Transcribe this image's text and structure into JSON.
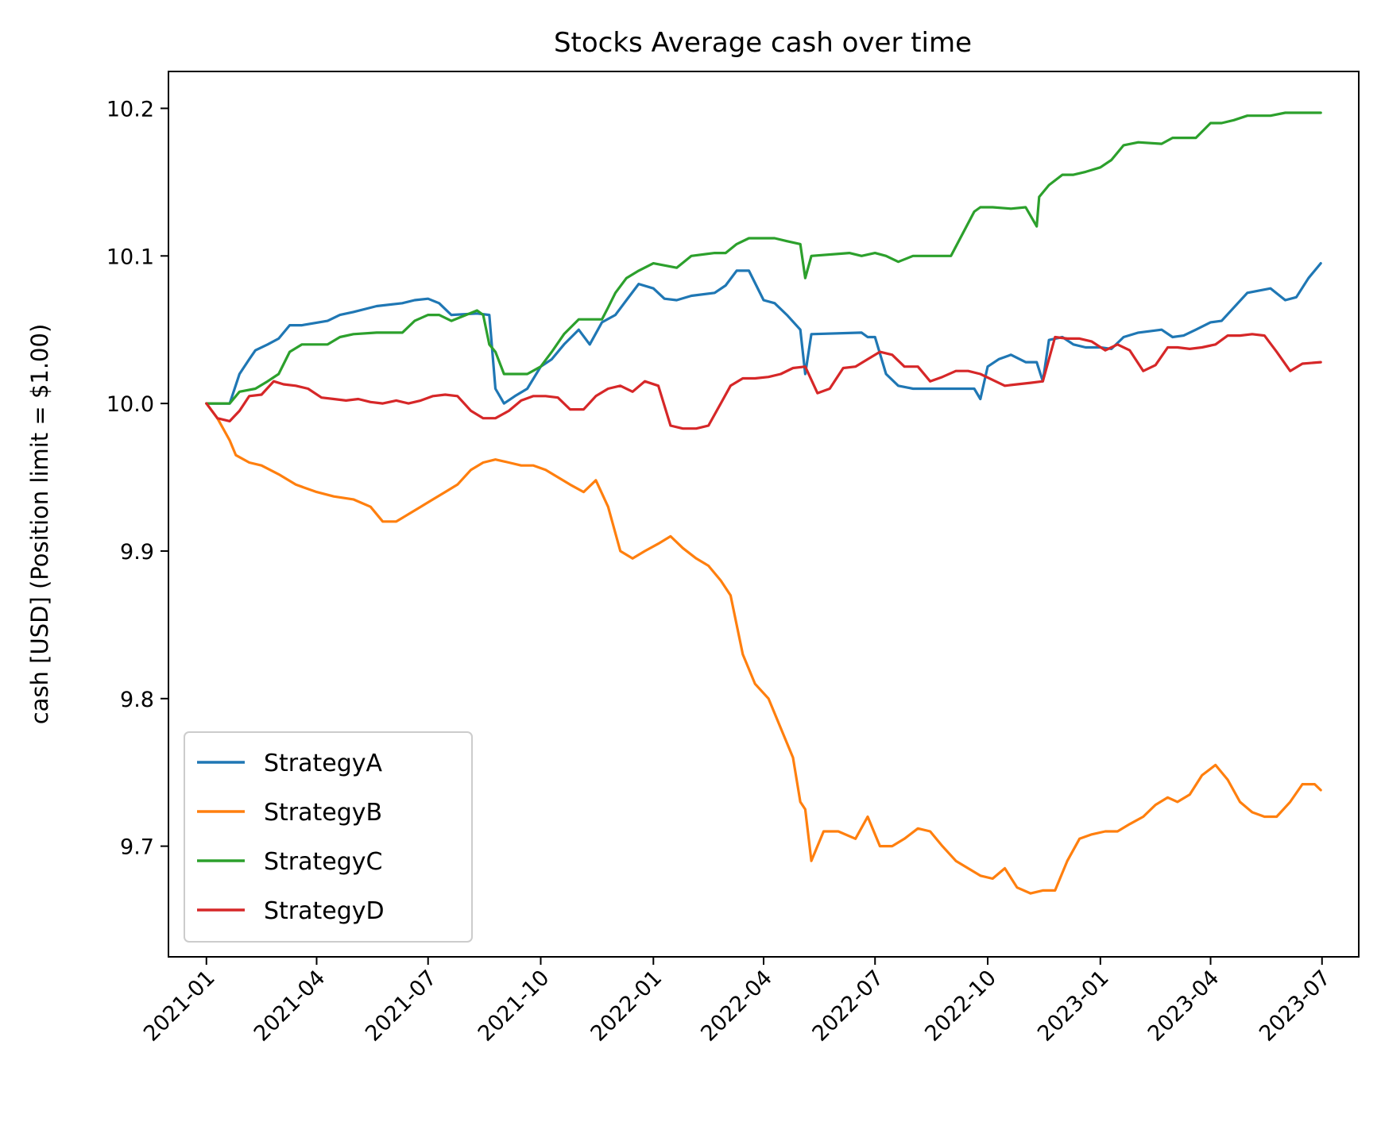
{
  "chart_data": {
    "type": "line",
    "title": "Stocks Average cash over time",
    "xlabel": "",
    "ylabel": "cash [USD] (Position limit = $1.00)",
    "xlim": [
      "2020-12-01",
      "2023-07-31"
    ],
    "ylim": [
      9.625,
      10.225
    ],
    "x_ticks": [
      "2021-01",
      "2021-04",
      "2021-07",
      "2021-10",
      "2022-01",
      "2022-04",
      "2022-07",
      "2022-10",
      "2023-01",
      "2023-04",
      "2023-07"
    ],
    "y_ticks": [
      "9.7",
      "9.8",
      "9.9",
      "10.0",
      "10.1",
      "10.2"
    ],
    "grid": false,
    "legend_position": "lower-left",
    "colors": {
      "StrategyA": "#1f77b4",
      "StrategyB": "#ff7f0e",
      "StrategyC": "#2ca02c",
      "StrategyD": "#d62728"
    },
    "series": [
      {
        "name": "StrategyA",
        "x": [
          "2021-01-01",
          "2021-01-20",
          "2021-01-28",
          "2021-02-05",
          "2021-02-10",
          "2021-02-20",
          "2021-03-01",
          "2021-03-10",
          "2021-03-20",
          "2021-04-10",
          "2021-04-20",
          "2021-05-01",
          "2021-05-20",
          "2021-06-10",
          "2021-06-20",
          "2021-07-01",
          "2021-07-10",
          "2021-07-20",
          "2021-08-10",
          "2021-08-20",
          "2021-08-25",
          "2021-09-01",
          "2021-09-10",
          "2021-09-20",
          "2021-10-01",
          "2021-10-10",
          "2021-10-20",
          "2021-11-01",
          "2021-11-10",
          "2021-11-20",
          "2021-12-01",
          "2021-12-10",
          "2021-12-20",
          "2022-01-01",
          "2022-01-10",
          "2022-01-20",
          "2022-02-01",
          "2022-02-20",
          "2022-03-01",
          "2022-03-10",
          "2022-03-20",
          "2022-04-01",
          "2022-04-10",
          "2022-04-20",
          "2022-05-01",
          "2022-05-05",
          "2022-05-10",
          "2022-06-20",
          "2022-06-25",
          "2022-07-01",
          "2022-07-10",
          "2022-07-20",
          "2022-08-01",
          "2022-08-20",
          "2022-09-01",
          "2022-09-20",
          "2022-09-25",
          "2022-10-01",
          "2022-10-10",
          "2022-10-20",
          "2022-11-01",
          "2022-11-10",
          "2022-11-15",
          "2022-11-20",
          "2022-12-01",
          "2022-12-10",
          "2022-12-20",
          "2023-01-01",
          "2023-01-10",
          "2023-01-20",
          "2023-02-01",
          "2023-02-20",
          "2023-03-01",
          "2023-03-10",
          "2023-03-20",
          "2023-04-01",
          "2023-04-10",
          "2023-04-20",
          "2023-05-01",
          "2023-05-20",
          "2023-06-01",
          "2023-06-10",
          "2023-06-20",
          "2023-06-30"
        ],
        "values": [
          10.0,
          10.0,
          10.02,
          10.03,
          10.036,
          10.04,
          10.044,
          10.053,
          10.053,
          10.056,
          10.06,
          10.062,
          10.066,
          10.068,
          10.07,
          10.071,
          10.068,
          10.06,
          10.061,
          10.06,
          10.01,
          10.0,
          10.005,
          10.01,
          10.025,
          10.03,
          10.04,
          10.05,
          10.04,
          10.055,
          10.06,
          10.07,
          10.081,
          10.078,
          10.071,
          10.07,
          10.073,
          10.075,
          10.08,
          10.09,
          10.09,
          10.07,
          10.068,
          10.06,
          10.05,
          10.02,
          10.047,
          10.048,
          10.045,
          10.045,
          10.02,
          10.012,
          10.01,
          10.01,
          10.01,
          10.01,
          10.003,
          10.025,
          10.03,
          10.033,
          10.028,
          10.028,
          10.015,
          10.043,
          10.045,
          10.04,
          10.038,
          10.038,
          10.037,
          10.045,
          10.048,
          10.05,
          10.045,
          10.046,
          10.05,
          10.055,
          10.056,
          10.065,
          10.075,
          10.078,
          10.07,
          10.072,
          10.085,
          10.095
        ]
      },
      {
        "name": "StrategyB",
        "x": [
          "2021-01-01",
          "2021-01-10",
          "2021-01-20",
          "2021-01-25",
          "2021-02-05",
          "2021-02-15",
          "2021-03-01",
          "2021-03-15",
          "2021-04-01",
          "2021-04-15",
          "2021-05-01",
          "2021-05-15",
          "2021-05-25",
          "2021-06-05",
          "2021-06-15",
          "2021-06-25",
          "2021-07-05",
          "2021-07-15",
          "2021-07-25",
          "2021-08-05",
          "2021-08-15",
          "2021-08-25",
          "2021-09-05",
          "2021-09-15",
          "2021-09-25",
          "2021-10-05",
          "2021-10-15",
          "2021-10-25",
          "2021-11-05",
          "2021-11-15",
          "2021-11-25",
          "2021-12-05",
          "2021-12-15",
          "2021-12-25",
          "2022-01-05",
          "2022-01-15",
          "2022-01-25",
          "2022-02-05",
          "2022-02-15",
          "2022-02-25",
          "2022-03-05",
          "2022-03-15",
          "2022-03-25",
          "2022-04-05",
          "2022-04-15",
          "2022-04-25",
          "2022-05-01",
          "2022-05-05",
          "2022-05-10",
          "2022-05-20",
          "2022-06-01",
          "2022-06-15",
          "2022-06-25",
          "2022-07-05",
          "2022-07-15",
          "2022-07-25",
          "2022-08-05",
          "2022-08-15",
          "2022-08-25",
          "2022-09-05",
          "2022-09-15",
          "2022-09-25",
          "2022-10-05",
          "2022-10-15",
          "2022-10-25",
          "2022-11-05",
          "2022-11-15",
          "2022-11-25",
          "2022-12-05",
          "2022-12-15",
          "2022-12-25",
          "2023-01-05",
          "2023-01-15",
          "2023-01-25",
          "2023-02-05",
          "2023-02-15",
          "2023-02-25",
          "2023-03-05",
          "2023-03-15",
          "2023-03-25",
          "2023-04-05",
          "2023-04-15",
          "2023-04-25",
          "2023-05-05",
          "2023-05-15",
          "2023-05-25",
          "2023-06-05",
          "2023-06-15",
          "2023-06-25",
          "2023-06-30"
        ],
        "values": [
          10.0,
          9.99,
          9.975,
          9.965,
          9.96,
          9.958,
          9.952,
          9.945,
          9.94,
          9.937,
          9.935,
          9.93,
          9.92,
          9.92,
          9.925,
          9.93,
          9.935,
          9.94,
          9.945,
          9.955,
          9.96,
          9.962,
          9.96,
          9.958,
          9.958,
          9.955,
          9.95,
          9.945,
          9.94,
          9.948,
          9.93,
          9.9,
          9.895,
          9.9,
          9.905,
          9.91,
          9.902,
          9.895,
          9.89,
          9.88,
          9.87,
          9.83,
          9.81,
          9.8,
          9.78,
          9.76,
          9.73,
          9.725,
          9.69,
          9.71,
          9.71,
          9.705,
          9.72,
          9.7,
          9.7,
          9.705,
          9.712,
          9.71,
          9.7,
          9.69,
          9.685,
          9.68,
          9.678,
          9.685,
          9.672,
          9.668,
          9.67,
          9.67,
          9.69,
          9.705,
          9.708,
          9.71,
          9.71,
          9.715,
          9.72,
          9.728,
          9.733,
          9.73,
          9.735,
          9.748,
          9.755,
          9.745,
          9.73,
          9.723,
          9.72,
          9.72,
          9.73,
          9.742,
          9.742,
          9.738
        ]
      },
      {
        "name": "StrategyC",
        "x": [
          "2021-01-01",
          "2021-01-20",
          "2021-01-28",
          "2021-02-10",
          "2021-02-20",
          "2021-03-01",
          "2021-03-10",
          "2021-03-20",
          "2021-04-10",
          "2021-04-20",
          "2021-05-01",
          "2021-05-20",
          "2021-06-10",
          "2021-06-20",
          "2021-07-01",
          "2021-07-10",
          "2021-07-20",
          "2021-08-10",
          "2021-08-15",
          "2021-08-20",
          "2021-08-25",
          "2021-09-01",
          "2021-09-20",
          "2021-10-01",
          "2021-10-10",
          "2021-10-20",
          "2021-11-01",
          "2021-11-20",
          "2021-11-25",
          "2021-12-01",
          "2021-12-10",
          "2021-12-20",
          "2022-01-01",
          "2022-01-20",
          "2022-02-01",
          "2022-02-20",
          "2022-03-01",
          "2022-03-10",
          "2022-03-20",
          "2022-04-10",
          "2022-04-20",
          "2022-05-01",
          "2022-05-05",
          "2022-05-10",
          "2022-06-10",
          "2022-06-20",
          "2022-07-01",
          "2022-07-10",
          "2022-07-20",
          "2022-08-01",
          "2022-08-20",
          "2022-09-01",
          "2022-09-20",
          "2022-09-25",
          "2022-10-05",
          "2022-10-20",
          "2022-11-01",
          "2022-11-10",
          "2022-11-12",
          "2022-11-20",
          "2022-12-01",
          "2022-12-10",
          "2022-12-20",
          "2023-01-01",
          "2023-01-10",
          "2023-01-20",
          "2023-02-01",
          "2023-02-20",
          "2023-03-01",
          "2023-03-10",
          "2023-03-20",
          "2023-04-01",
          "2023-04-10",
          "2023-04-20",
          "2023-05-01",
          "2023-05-20",
          "2023-06-01",
          "2023-06-30"
        ],
        "values": [
          10.0,
          10.0,
          10.008,
          10.01,
          10.015,
          10.02,
          10.035,
          10.04,
          10.04,
          10.045,
          10.047,
          10.048,
          10.048,
          10.056,
          10.06,
          10.06,
          10.056,
          10.063,
          10.06,
          10.04,
          10.035,
          10.02,
          10.02,
          10.025,
          10.035,
          10.047,
          10.057,
          10.057,
          10.065,
          10.075,
          10.085,
          10.09,
          10.095,
          10.092,
          10.1,
          10.102,
          10.102,
          10.108,
          10.112,
          10.112,
          10.11,
          10.108,
          10.085,
          10.1,
          10.102,
          10.1,
          10.102,
          10.1,
          10.096,
          10.1,
          10.1,
          10.1,
          10.13,
          10.133,
          10.133,
          10.132,
          10.133,
          10.12,
          10.14,
          10.148,
          10.155,
          10.155,
          10.157,
          10.16,
          10.165,
          10.175,
          10.177,
          10.176,
          10.18,
          10.18,
          10.18,
          10.19,
          10.19,
          10.192,
          10.195,
          10.195,
          10.197,
          10.197
        ]
      },
      {
        "name": "StrategyD",
        "x": [
          "2021-01-01",
          "2021-01-10",
          "2021-01-20",
          "2021-01-28",
          "2021-02-05",
          "2021-02-15",
          "2021-02-25",
          "2021-03-05",
          "2021-03-15",
          "2021-03-25",
          "2021-04-05",
          "2021-04-15",
          "2021-04-25",
          "2021-05-05",
          "2021-05-15",
          "2021-05-25",
          "2021-06-05",
          "2021-06-15",
          "2021-06-25",
          "2021-07-05",
          "2021-07-15",
          "2021-07-25",
          "2021-08-05",
          "2021-08-15",
          "2021-08-25",
          "2021-09-05",
          "2021-09-15",
          "2021-09-25",
          "2021-10-05",
          "2021-10-15",
          "2021-10-25",
          "2021-11-05",
          "2021-11-15",
          "2021-11-25",
          "2021-12-05",
          "2021-12-15",
          "2021-12-25",
          "2022-01-05",
          "2022-01-15",
          "2022-01-25",
          "2022-02-05",
          "2022-02-15",
          "2022-02-25",
          "2022-03-05",
          "2022-03-15",
          "2022-03-25",
          "2022-04-05",
          "2022-04-15",
          "2022-04-25",
          "2022-05-05",
          "2022-05-15",
          "2022-05-25",
          "2022-06-05",
          "2022-06-15",
          "2022-06-25",
          "2022-07-05",
          "2022-07-15",
          "2022-07-25",
          "2022-08-05",
          "2022-08-15",
          "2022-08-25",
          "2022-09-05",
          "2022-09-15",
          "2022-09-25",
          "2022-10-05",
          "2022-10-15",
          "2022-10-25",
          "2022-11-05",
          "2022-11-15",
          "2022-11-25",
          "2022-12-05",
          "2022-12-15",
          "2022-12-25",
          "2023-01-05",
          "2023-01-15",
          "2023-01-25",
          "2023-02-05",
          "2023-02-15",
          "2023-02-25",
          "2023-03-05",
          "2023-03-15",
          "2023-03-25",
          "2023-04-05",
          "2023-04-15",
          "2023-04-25",
          "2023-05-05",
          "2023-05-15",
          "2023-05-25",
          "2023-06-05",
          "2023-06-15",
          "2023-06-30"
        ],
        "values": [
          10.0,
          9.99,
          9.988,
          9.995,
          10.005,
          10.006,
          10.015,
          10.013,
          10.012,
          10.01,
          10.004,
          10.003,
          10.002,
          10.003,
          10.001,
          10.0,
          10.002,
          10.0,
          10.002,
          10.005,
          10.006,
          10.005,
          9.995,
          9.99,
          9.99,
          9.995,
          10.002,
          10.005,
          10.005,
          10.004,
          9.996,
          9.996,
          10.005,
          10.01,
          10.012,
          10.008,
          10.015,
          10.012,
          9.985,
          9.983,
          9.983,
          9.985,
          10.0,
          10.012,
          10.017,
          10.017,
          10.018,
          10.02,
          10.024,
          10.025,
          10.007,
          10.01,
          10.024,
          10.025,
          10.03,
          10.035,
          10.033,
          10.025,
          10.025,
          10.015,
          10.018,
          10.022,
          10.022,
          10.02,
          10.016,
          10.012,
          10.013,
          10.014,
          10.015,
          10.045,
          10.044,
          10.044,
          10.042,
          10.036,
          10.04,
          10.036,
          10.022,
          10.026,
          10.038,
          10.038,
          10.037,
          10.038,
          10.04,
          10.046,
          10.046,
          10.047,
          10.046,
          10.035,
          10.022,
          10.027,
          10.028
        ]
      }
    ]
  }
}
